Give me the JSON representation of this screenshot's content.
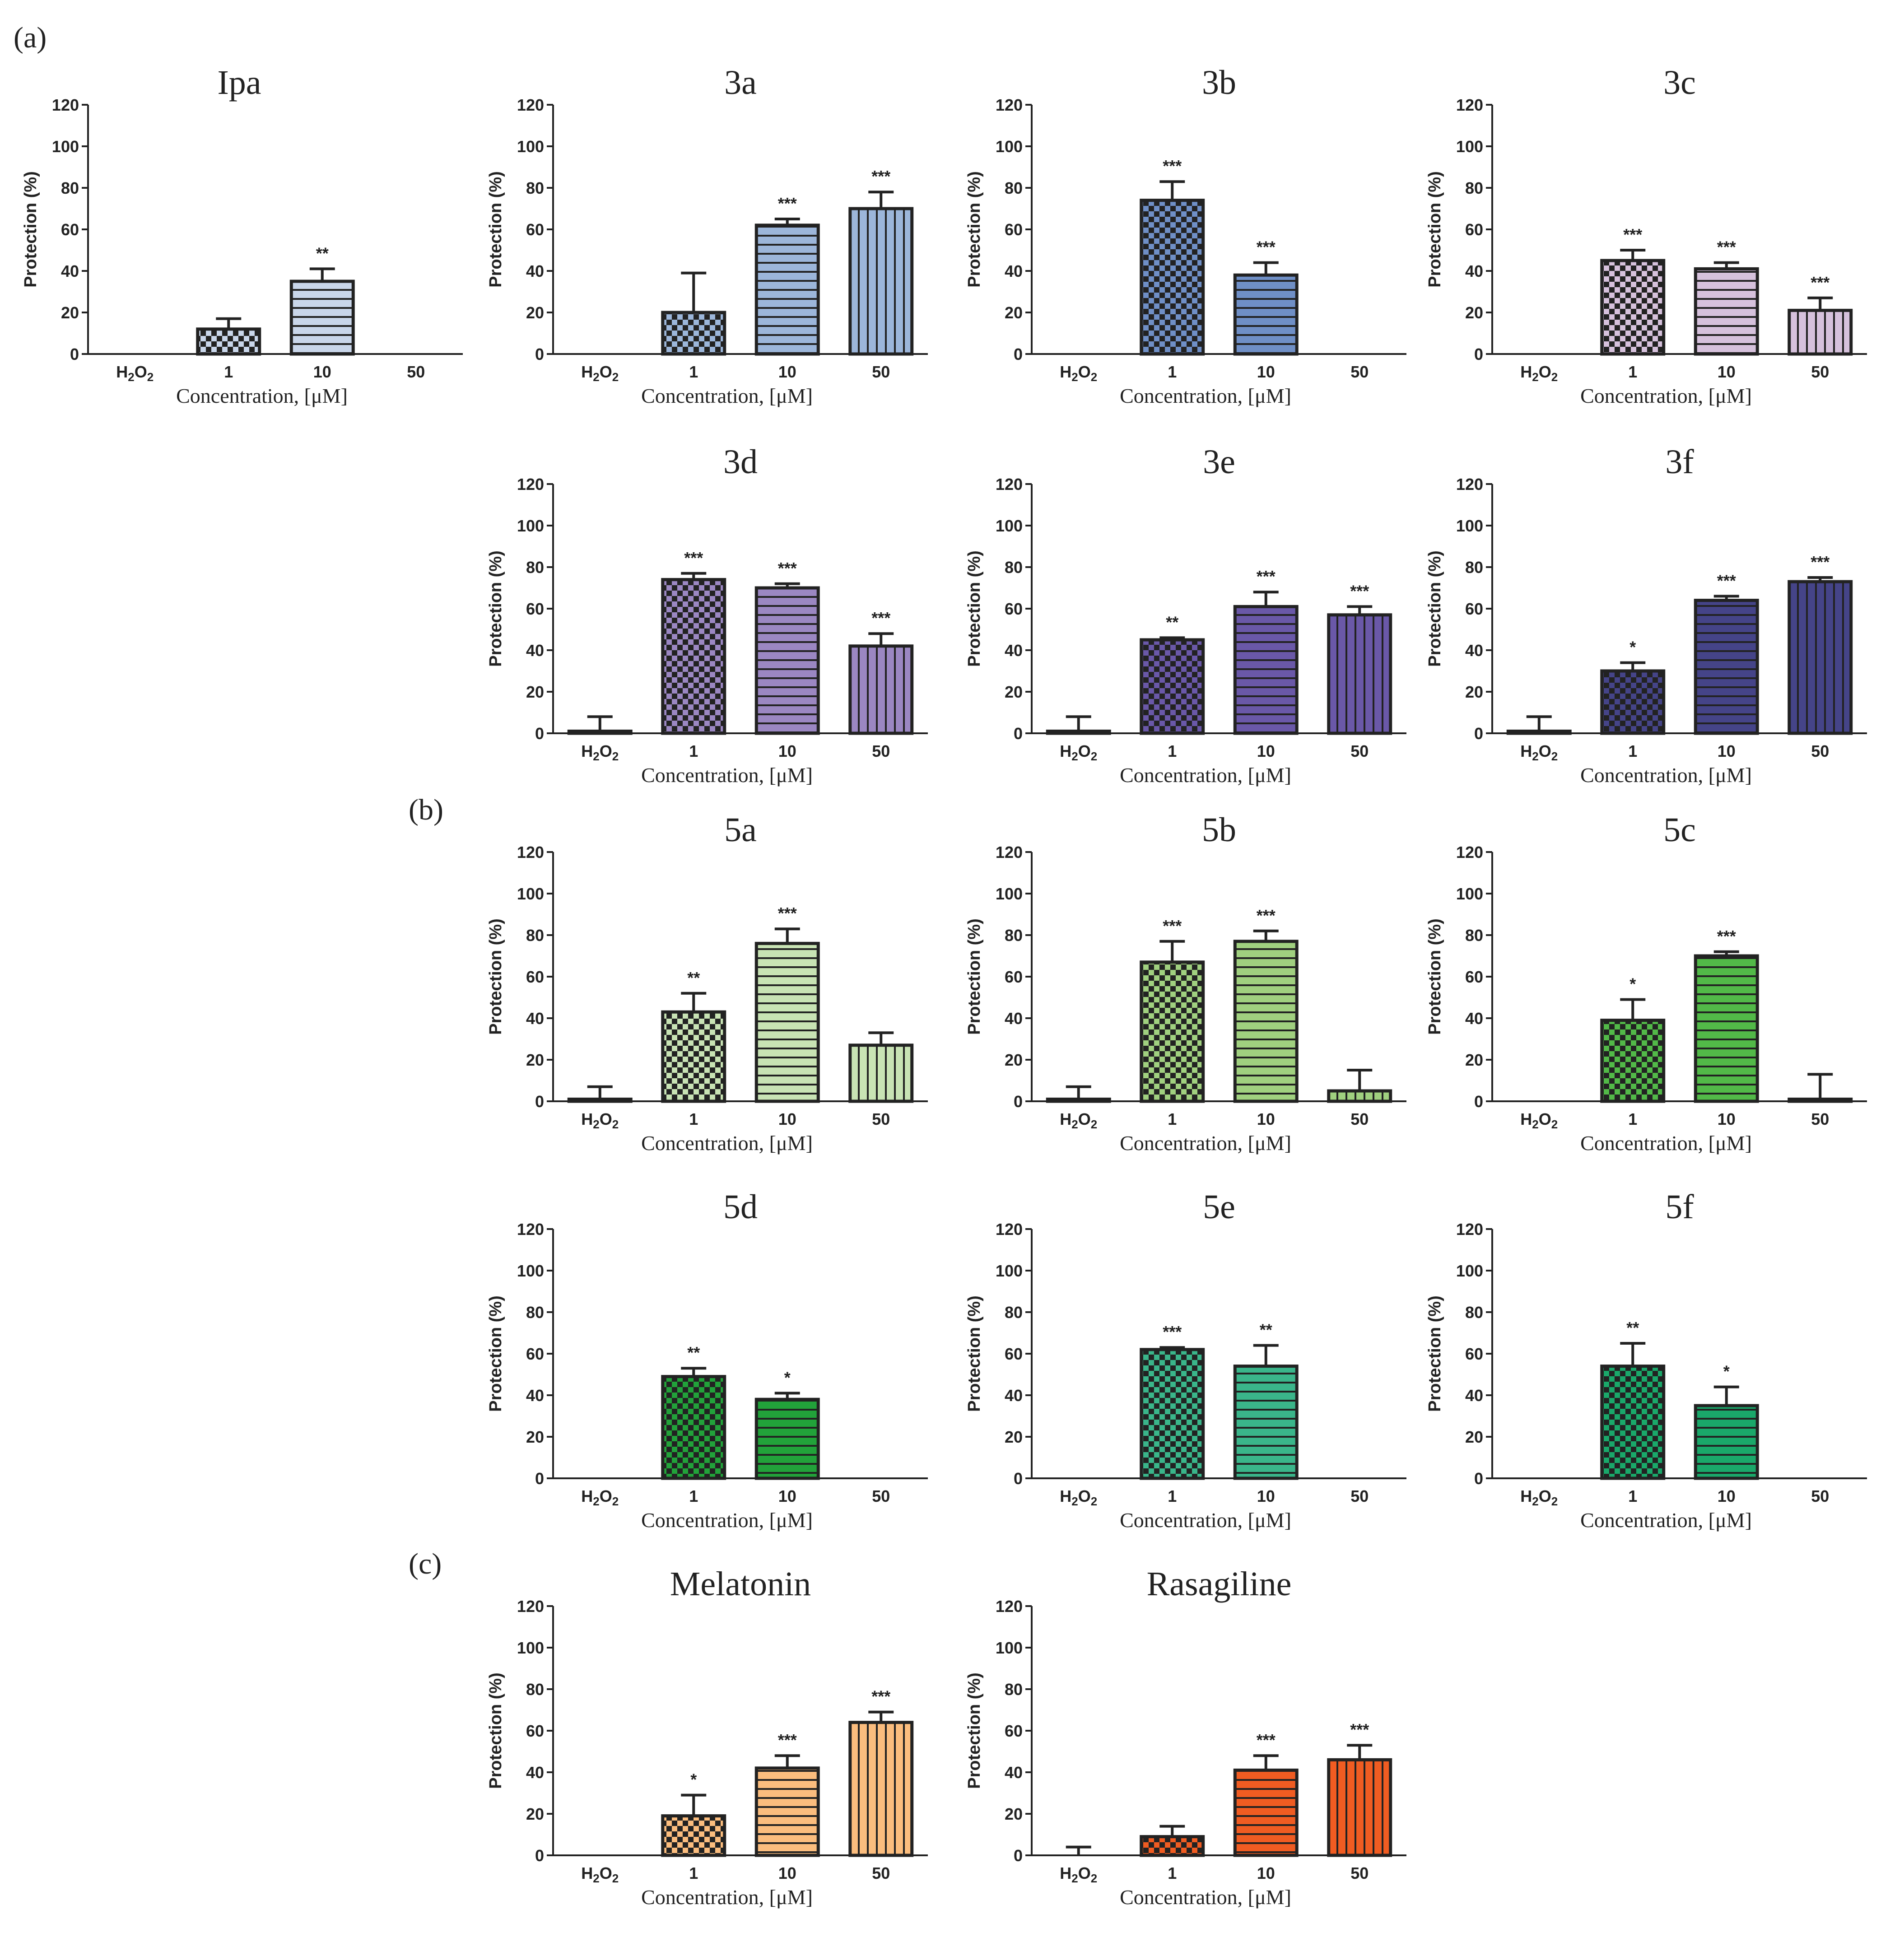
{
  "panel_labels": [
    "(a)",
    "(b)",
    "(c)"
  ],
  "shared": {
    "ylabel": "Protection (%)",
    "xlabel": "Concentration, [μM]",
    "categories": [
      "H2O2",
      "1",
      "10",
      "50"
    ],
    "h2o2_base": "H",
    "h2o2_sub1": "2",
    "h2o2_mid": "O",
    "h2o2_sub2": "2",
    "yticks": [
      0,
      20,
      40,
      60,
      80,
      100,
      120
    ],
    "ylim": [
      0,
      120
    ]
  },
  "colors": {
    "axis": "#222222",
    "ipa": "#c9d6ea",
    "3a": "#9cb6da",
    "3b": "#6f8fc6",
    "3c": "#d6c1dc",
    "3d": "#9b87c2",
    "3e": "#6a58a8",
    "3f": "#454488",
    "5a": "#c8e3b4",
    "5b": "#a0d07f",
    "5c": "#52b948",
    "5d": "#22a23a",
    "5e": "#3ab58a",
    "5f": "#1aa86a",
    "melatonin": "#fbbd7e",
    "rasagiline": "#f05c22"
  },
  "chart_data": [
    {
      "type": "bar",
      "title": "Ipa",
      "categories": [
        "H2O2",
        "1",
        "10",
        "50"
      ],
      "values": [
        0,
        12,
        35,
        0
      ],
      "errors": [
        0,
        5,
        6,
        0
      ],
      "significance": [
        "",
        "",
        "**",
        ""
      ],
      "xlabel": "Concentration, [μM]",
      "ylabel": "Protection (%)",
      "ylim": [
        0,
        120
      ]
    },
    {
      "type": "bar",
      "title": "3a",
      "categories": [
        "H2O2",
        "1",
        "10",
        "50"
      ],
      "values": [
        0,
        20,
        62,
        70
      ],
      "errors": [
        0,
        19,
        3,
        8
      ],
      "significance": [
        "",
        "",
        "***",
        "***"
      ],
      "xlabel": "Concentration, [μM]",
      "ylabel": "Protection (%)",
      "ylim": [
        0,
        120
      ]
    },
    {
      "type": "bar",
      "title": "3b",
      "categories": [
        "H2O2",
        "1",
        "10",
        "50"
      ],
      "values": [
        0,
        74,
        38,
        0
      ],
      "errors": [
        0,
        9,
        6,
        0
      ],
      "significance": [
        "",
        "***",
        "***",
        ""
      ],
      "xlabel": "Concentration, [μM]",
      "ylabel": "Protection (%)",
      "ylim": [
        0,
        120
      ]
    },
    {
      "type": "bar",
      "title": "3c",
      "categories": [
        "H2O2",
        "1",
        "10",
        "50"
      ],
      "values": [
        0,
        45,
        41,
        21
      ],
      "errors": [
        0,
        5,
        3,
        6
      ],
      "significance": [
        "",
        "***",
        "***",
        "***"
      ],
      "xlabel": "Concentration, [μM]",
      "ylabel": "Protection (%)",
      "ylim": [
        0,
        120
      ]
    },
    {
      "type": "bar",
      "title": "3d",
      "categories": [
        "H2O2",
        "1",
        "10",
        "50"
      ],
      "values": [
        1,
        74,
        70,
        42
      ],
      "errors": [
        7,
        3,
        2,
        6
      ],
      "significance": [
        "",
        "***",
        "***",
        "***"
      ],
      "xlabel": "Concentration, [μM]",
      "ylabel": "Protection (%)",
      "ylim": [
        0,
        120
      ]
    },
    {
      "type": "bar",
      "title": "3e",
      "categories": [
        "H2O2",
        "1",
        "10",
        "50"
      ],
      "values": [
        1,
        45,
        61,
        57
      ],
      "errors": [
        7,
        1,
        7,
        4
      ],
      "significance": [
        "",
        "**",
        "***",
        "***"
      ],
      "xlabel": "Concentration, [μM]",
      "ylabel": "Protection (%)",
      "ylim": [
        0,
        120
      ]
    },
    {
      "type": "bar",
      "title": "3f",
      "categories": [
        "H2O2",
        "1",
        "10",
        "50"
      ],
      "values": [
        1,
        30,
        64,
        73
      ],
      "errors": [
        7,
        4,
        2,
        2
      ],
      "significance": [
        "",
        "*",
        "***",
        "***"
      ],
      "xlabel": "Concentration, [μM]",
      "ylabel": "Protection (%)",
      "ylim": [
        0,
        120
      ]
    },
    {
      "type": "bar",
      "title": "5a",
      "categories": [
        "H2O2",
        "1",
        "10",
        "50"
      ],
      "values": [
        1,
        43,
        76,
        27
      ],
      "errors": [
        6,
        9,
        7,
        6
      ],
      "significance": [
        "",
        "**",
        "***",
        ""
      ],
      "xlabel": "Concentration, [μM]",
      "ylabel": "Protection (%)",
      "ylim": [
        0,
        120
      ]
    },
    {
      "type": "bar",
      "title": "5b",
      "categories": [
        "H2O2",
        "1",
        "10",
        "50"
      ],
      "values": [
        1,
        67,
        77,
        5
      ],
      "errors": [
        6,
        10,
        5,
        10
      ],
      "significance": [
        "",
        "***",
        "***",
        ""
      ],
      "xlabel": "Concentration, [μM]",
      "ylabel": "Protection (%)",
      "ylim": [
        0,
        120
      ]
    },
    {
      "type": "bar",
      "title": "5c",
      "categories": [
        "H2O2",
        "1",
        "10",
        "50"
      ],
      "values": [
        0,
        39,
        70,
        1
      ],
      "errors": [
        0,
        10,
        2,
        12
      ],
      "significance": [
        "",
        "*",
        "***",
        ""
      ],
      "xlabel": "Concentration, [μM]",
      "ylabel": "Protection (%)",
      "ylim": [
        0,
        120
      ]
    },
    {
      "type": "bar",
      "title": "5d",
      "categories": [
        "H2O2",
        "1",
        "10",
        "50"
      ],
      "values": [
        0,
        49,
        38,
        0
      ],
      "errors": [
        0,
        4,
        3,
        0
      ],
      "significance": [
        "",
        "**",
        "*",
        ""
      ],
      "xlabel": "Concentration, [μM]",
      "ylabel": "Protection (%)",
      "ylim": [
        0,
        120
      ]
    },
    {
      "type": "bar",
      "title": "5e",
      "categories": [
        "H2O2",
        "1",
        "10",
        "50"
      ],
      "values": [
        0,
        62,
        54,
        0
      ],
      "errors": [
        0,
        1,
        10,
        0
      ],
      "significance": [
        "",
        "***",
        "**",
        ""
      ],
      "xlabel": "Concentration, [μM]",
      "ylabel": "Protection (%)",
      "ylim": [
        0,
        120
      ]
    },
    {
      "type": "bar",
      "title": "5f",
      "categories": [
        "H2O2",
        "1",
        "10",
        "50"
      ],
      "values": [
        0,
        54,
        35,
        0
      ],
      "errors": [
        0,
        11,
        9,
        0
      ],
      "significance": [
        "",
        "**",
        "*",
        ""
      ],
      "xlabel": "Concentration, [μM]",
      "ylabel": "Protection (%)",
      "ylim": [
        0,
        120
      ]
    },
    {
      "type": "bar",
      "title": "Melatonin",
      "categories": [
        "H2O2",
        "1",
        "10",
        "50"
      ],
      "values": [
        0,
        19,
        42,
        64
      ],
      "errors": [
        0,
        10,
        6,
        5
      ],
      "significance": [
        "",
        "*",
        "***",
        "***"
      ],
      "xlabel": "Concentration, [μM]",
      "ylabel": "Protection (%)",
      "ylim": [
        0,
        120
      ]
    },
    {
      "type": "bar",
      "title": "Rasagiline",
      "categories": [
        "H2O2",
        "1",
        "10",
        "50"
      ],
      "values": [
        0,
        9,
        41,
        46
      ],
      "errors": [
        4,
        5,
        7,
        7
      ],
      "significance": [
        "",
        "",
        "***",
        "***"
      ],
      "xlabel": "Concentration, [μM]",
      "ylabel": "Protection (%)",
      "ylim": [
        0,
        120
      ]
    }
  ]
}
